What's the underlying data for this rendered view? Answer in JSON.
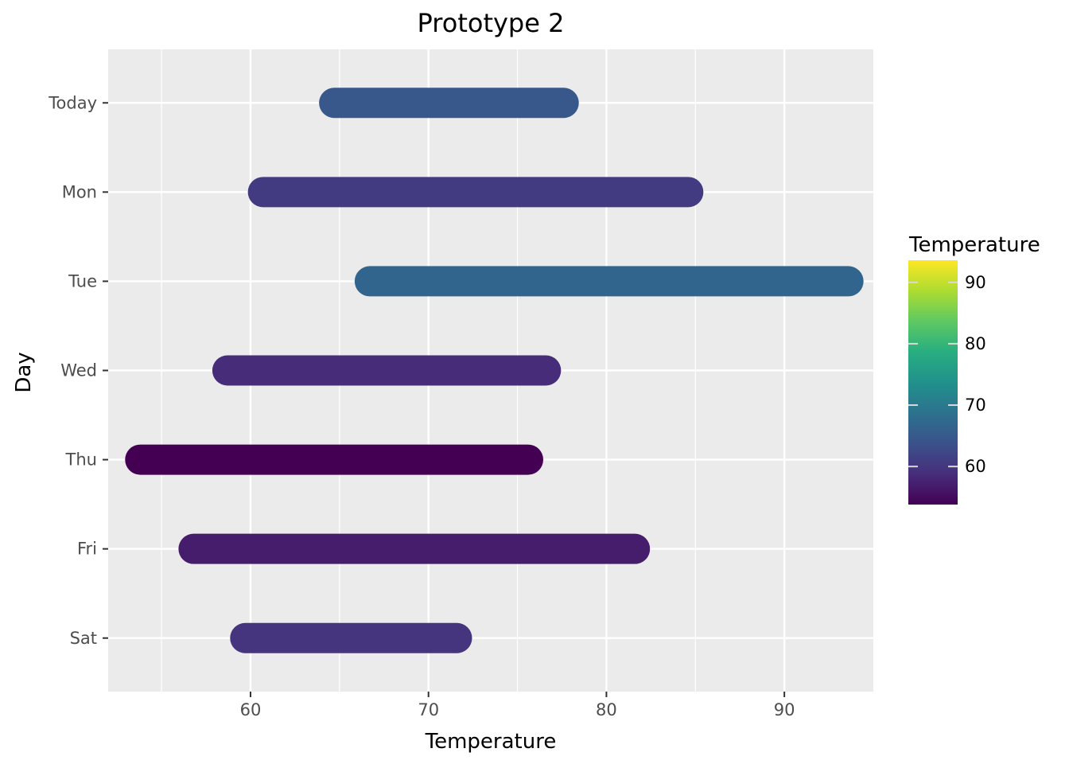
{
  "chart_data": {
    "type": "range-bar",
    "title": "Prototype 2",
    "xlabel": "Temperature",
    "ylabel": "Day",
    "xlim": [
      52.0,
      95.0
    ],
    "x_ticks": [
      60,
      70,
      80,
      90
    ],
    "x_minor_ticks": [
      55,
      65,
      75,
      85
    ],
    "grid": true,
    "categories": [
      "Today",
      "Mon",
      "Tue",
      "Wed",
      "Thu",
      "Fri",
      "Sat"
    ],
    "series": [
      {
        "low": [
          64.7,
          60.7,
          66.7,
          58.7,
          53.8,
          56.8,
          59.7
        ],
        "high": [
          77.6,
          84.6,
          93.6,
          76.6,
          75.6,
          81.6,
          71.6
        ],
        "color_value": [
          64.7,
          60.7,
          66.7,
          58.7,
          53.8,
          56.8,
          59.7
        ]
      }
    ],
    "legend": {
      "title": "Temperature",
      "placement": "right",
      "colormap": "viridis",
      "range": [
        53.8,
        93.6
      ],
      "ticks": [
        60,
        70,
        80,
        90
      ]
    }
  }
}
